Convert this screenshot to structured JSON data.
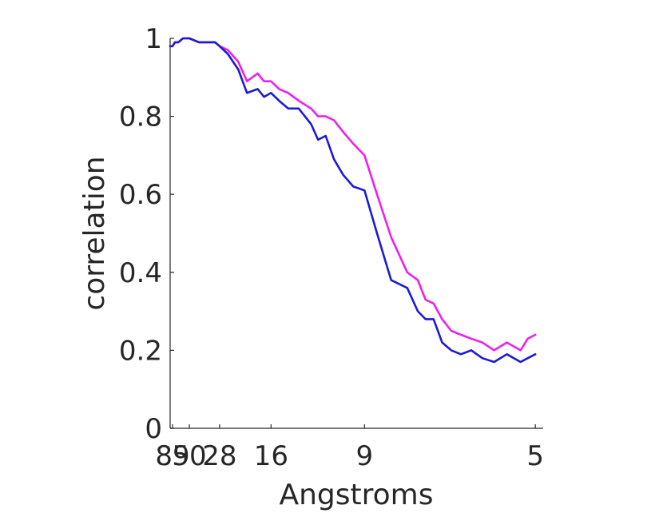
{
  "chart_data": {
    "type": "line",
    "title": "",
    "xlabel": "Angstroms",
    "ylabel": "correlation",
    "x_scale": "reciprocal",
    "x_tick_labels": [
      "89",
      "50",
      "28",
      "16",
      "9",
      "5"
    ],
    "x_ticks": [
      89,
      50,
      28,
      16,
      9,
      5
    ],
    "xlim": [
      100,
      4.9
    ],
    "y_tick_labels": [
      "0",
      "0.2",
      "0.4",
      "0.6",
      "0.8",
      "1"
    ],
    "y_ticks": [
      0,
      0.2,
      0.4,
      0.6,
      0.8,
      1
    ],
    "ylim": [
      0,
      1
    ],
    "grid": false,
    "legend": "none",
    "series": [
      {
        "color": "#ee1fee",
        "x": [
          100,
          89,
          80,
          70,
          60,
          50,
          40,
          35,
          30,
          28,
          25,
          22,
          20,
          18,
          17,
          16,
          15,
          14,
          13,
          12,
          11.5,
          11,
          10.5,
          10,
          9.5,
          9,
          8.5,
          8,
          7.5,
          7.2,
          7,
          6.8,
          6.6,
          6.4,
          6.2,
          6,
          5.8,
          5.6,
          5.4,
          5.2,
          5.1,
          5
        ],
        "y": [
          0.98,
          0.98,
          0.99,
          0.99,
          1.0,
          1.0,
          0.99,
          0.99,
          0.99,
          0.98,
          0.97,
          0.94,
          0.89,
          0.91,
          0.89,
          0.89,
          0.87,
          0.86,
          0.84,
          0.82,
          0.8,
          0.8,
          0.79,
          0.76,
          0.73,
          0.7,
          0.6,
          0.49,
          0.4,
          0.38,
          0.33,
          0.32,
          0.28,
          0.25,
          0.24,
          0.23,
          0.22,
          0.2,
          0.22,
          0.2,
          0.23,
          0.24
        ]
      },
      {
        "color": "#1a1ad6",
        "x": [
          100,
          89,
          80,
          70,
          60,
          50,
          40,
          35,
          30,
          28,
          25,
          22,
          20,
          18,
          17,
          16,
          15,
          14,
          13,
          12,
          11.5,
          11,
          10.5,
          10,
          9.5,
          9,
          8.5,
          8,
          7.5,
          7.2,
          7,
          6.8,
          6.6,
          6.4,
          6.2,
          6,
          5.8,
          5.6,
          5.4,
          5.2,
          5.1,
          5
        ],
        "y": [
          0.98,
          0.98,
          0.99,
          0.99,
          1.0,
          1.0,
          0.99,
          0.99,
          0.99,
          0.98,
          0.96,
          0.92,
          0.86,
          0.87,
          0.85,
          0.86,
          0.84,
          0.82,
          0.82,
          0.78,
          0.74,
          0.75,
          0.69,
          0.65,
          0.62,
          0.61,
          0.5,
          0.38,
          0.36,
          0.3,
          0.28,
          0.28,
          0.22,
          0.2,
          0.19,
          0.2,
          0.18,
          0.17,
          0.19,
          0.17,
          0.18,
          0.19
        ]
      }
    ]
  }
}
